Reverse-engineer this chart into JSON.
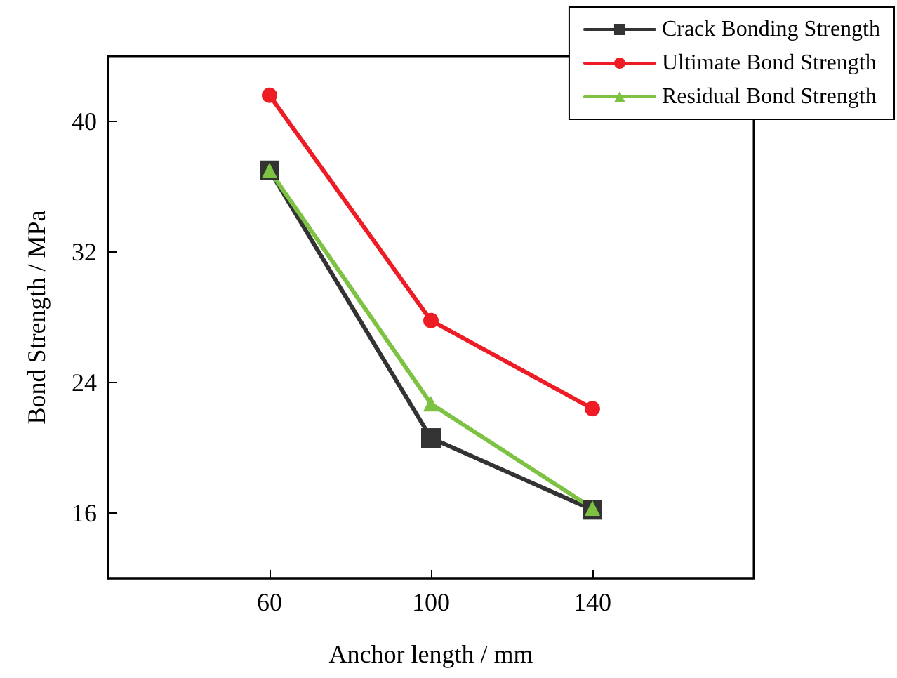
{
  "chart_data": {
    "type": "line",
    "xlabel": "Anchor length / mm",
    "ylabel": "Bond Strength / MPa",
    "x": [
      60,
      100,
      140
    ],
    "series": [
      {
        "name": "Crack Bonding Strength",
        "color": "#333333",
        "marker": "square",
        "values": [
          37.0,
          20.6,
          16.2
        ]
      },
      {
        "name": "Ultimate Bond Strength",
        "color": "#ee1c24",
        "marker": "circle",
        "values": [
          41.6,
          27.8,
          22.4
        ]
      },
      {
        "name": "Residual Bond Strength",
        "color": "#7dc242",
        "marker": "triangle",
        "values": [
          37.0,
          22.7,
          16.3
        ]
      }
    ],
    "xlim": [
      20,
      180
    ],
    "xticks": [
      60,
      100,
      140
    ],
    "ylim": [
      12,
      44
    ],
    "yticks": [
      16,
      24,
      32,
      40
    ],
    "grid": false,
    "legend": "top right",
    "line_style": "solid"
  }
}
